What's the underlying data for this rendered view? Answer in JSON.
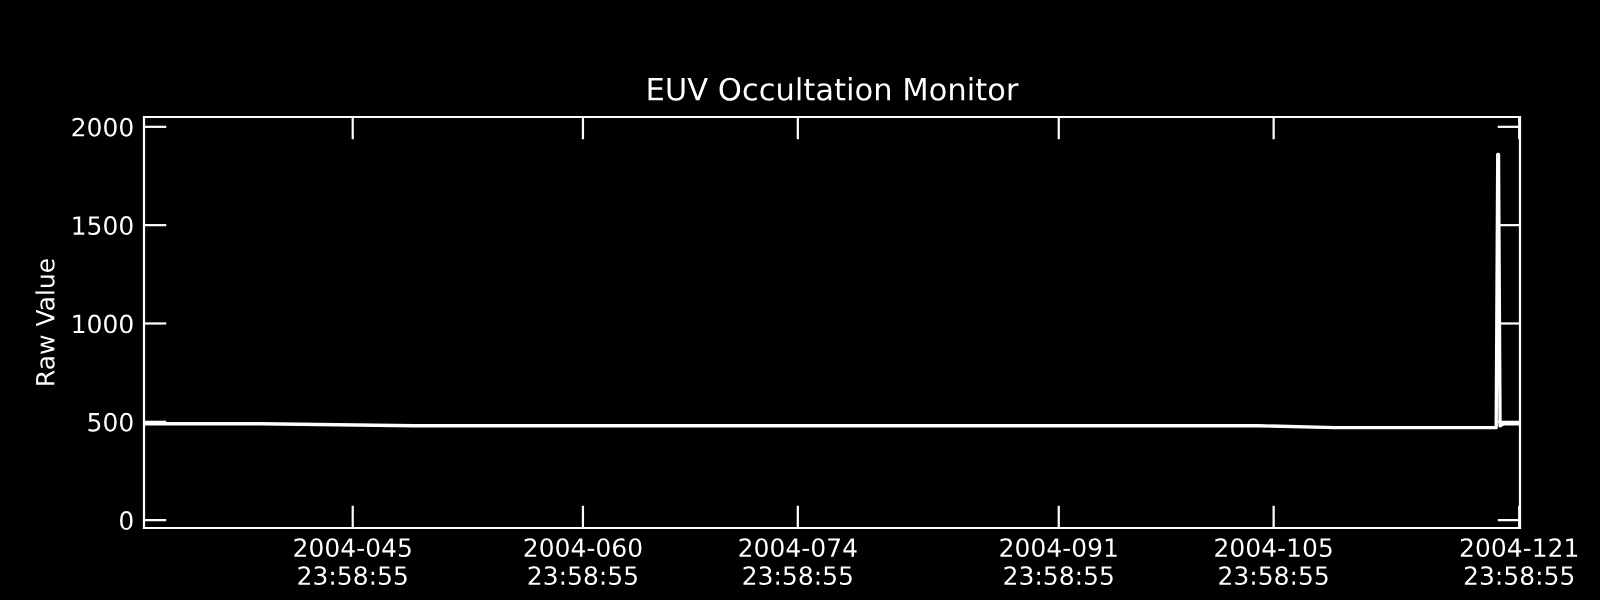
{
  "chart_data": {
    "type": "line",
    "title": "EUV Occultation Monitor",
    "ylabel": "Raw Value",
    "x": [
      "2004-02-01T09:36",
      "2004-02-03T00:00",
      "2004-02-09T00:00",
      "2004-02-19T00:00",
      "2004-02-29T00:00",
      "2004-03-10T00:00",
      "2004-03-20T00:00",
      "2004-03-30T00:00",
      "2004-04-09T00:00",
      "2004-04-14T00:00",
      "2004-04-19T00:00",
      "2004-04-24T00:00",
      "2004-04-29T12:00",
      "2004-04-29T14:24",
      "2004-04-29T15:36",
      "2004-04-29T18:00",
      "2004-04-30T00:00",
      "2004-05-01T00:00"
    ],
    "series": [
      {
        "color": "#ffffff",
        "values": [
          490,
          490,
          490,
          480,
          480,
          480,
          480,
          480,
          480,
          480,
          470,
          470,
          470,
          1860,
          1860,
          480,
          490,
          490
        ]
      }
    ],
    "xlim": [
      "2004-02-01T09:36",
      "2004-05-01T01:12"
    ],
    "xticks": [
      {
        "value": "2004-02-14T23:58",
        "label": "2004-045\n23:58:55"
      },
      {
        "value": "2004-02-29T23:58",
        "label": "2004-060\n23:58:55"
      },
      {
        "value": "2004-03-14T23:58",
        "label": "2004-074\n23:58:55"
      },
      {
        "value": "2004-03-31T23:58",
        "label": "2004-091\n23:58:55"
      },
      {
        "value": "2004-04-14T23:58",
        "label": "2004-105\n23:58:55"
      },
      {
        "value": "2004-04-30T23:58",
        "label": "2004-121\n23:58:55"
      }
    ],
    "ylim": [
      -40,
      2050
    ],
    "yticks": [
      0,
      500,
      1000,
      1500,
      2000
    ],
    "grid": false,
    "marker": "none",
    "line_style": "solid"
  }
}
